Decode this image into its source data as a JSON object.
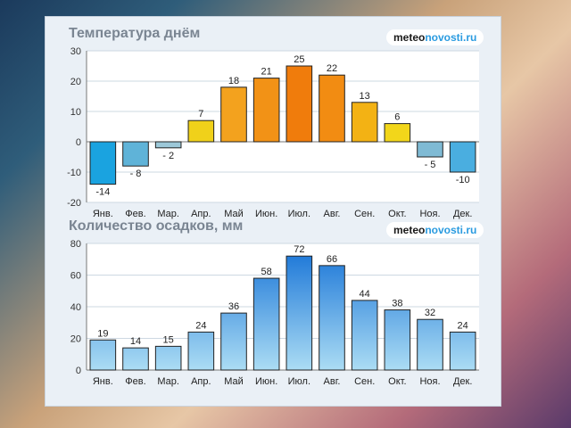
{
  "logo": {
    "prefix": "meteo",
    "accent": "novosti.ru"
  },
  "chart_data": [
    {
      "type": "bar",
      "title": "Температура днём",
      "categories": [
        "Янв.",
        "Фев.",
        "Мар.",
        "Апр.",
        "Май",
        "Июн.",
        "Июл.",
        "Авг.",
        "Сен.",
        "Окт.",
        "Ноя.",
        "Дек."
      ],
      "values": [
        -14,
        -8,
        -2,
        7,
        18,
        21,
        25,
        22,
        13,
        6,
        -5,
        -10
      ],
      "value_labels": [
        "-14",
        "- 8",
        "- 2",
        "7",
        "18",
        "21",
        "25",
        "22",
        "13",
        "6",
        "- 5",
        "-10"
      ],
      "ylim": [
        -20,
        30
      ],
      "yticks": [
        -20,
        -10,
        0,
        10,
        20,
        30
      ],
      "ytick_labels": [
        "-20",
        "-10",
        "0",
        "10",
        "20",
        "30"
      ],
      "grid": true,
      "bar_colors": [
        "#1aa3e0",
        "#5fb3d8",
        "#9cc8d8",
        "#f0d11a",
        "#f3a21e",
        "#f29216",
        "#f07c0c",
        "#f28c12",
        "#f3b214",
        "#f2d61a",
        "#7fbad4",
        "#4aaee0"
      ]
    },
    {
      "type": "bar",
      "title": "Количество осадков, мм",
      "categories": [
        "Янв.",
        "Фев.",
        "Мар.",
        "Апр.",
        "Май",
        "Июн.",
        "Июл.",
        "Авг.",
        "Сен.",
        "Окт.",
        "Ноя.",
        "Дек."
      ],
      "values": [
        19,
        14,
        15,
        24,
        36,
        58,
        72,
        66,
        44,
        38,
        32,
        24
      ],
      "value_labels": [
        "19",
        "14",
        "15",
        "24",
        "36",
        "58",
        "72",
        "66",
        "44",
        "38",
        "32",
        "24"
      ],
      "ylim": [
        0,
        80
      ],
      "yticks": [
        0,
        20,
        40,
        60,
        80
      ],
      "ytick_labels": [
        "0",
        "20",
        "40",
        "60",
        "80"
      ],
      "grid": true,
      "bar_color_top": "#1e78d8",
      "bar_color_bottom": "#b6e4f6"
    }
  ]
}
